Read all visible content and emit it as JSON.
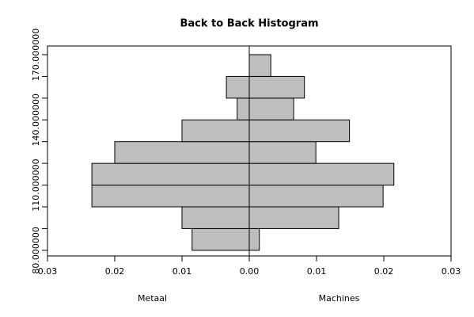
{
  "chart_data": {
    "type": "histogram",
    "title": "Back to Back Histogram",
    "bins": [
      80,
      90,
      100,
      110,
      120,
      130,
      140,
      150,
      160,
      170
    ],
    "series": [
      {
        "name": "Metaal",
        "color": "#bebebe",
        "values": [
          0.0085,
          0.01,
          0.0234,
          0.0234,
          0.02,
          0.01,
          0.0018,
          0.0034,
          0
        ]
      },
      {
        "name": "Machines",
        "color": "#bebebe",
        "values": [
          0.0015,
          0.0133,
          0.0199,
          0.0215,
          0.0099,
          0.0149,
          0.0066,
          0.0082,
          0.0032
        ]
      }
    ],
    "xlim": [
      -0.03,
      0.03
    ],
    "xticks": [
      {
        "value": -0.03,
        "label": "0.03"
      },
      {
        "value": -0.02,
        "label": "0.02"
      },
      {
        "value": -0.01,
        "label": "0.01"
      },
      {
        "value": 0,
        "label": "0.00"
      },
      {
        "value": 0.01,
        "label": "0.01"
      },
      {
        "value": 0.02,
        "label": "0.02"
      },
      {
        "value": 0.03,
        "label": "0.03"
      }
    ],
    "ylim": [
      77.4,
      174
    ],
    "yticks": [
      {
        "value": 80,
        "label": "80.000000"
      },
      {
        "value": 90,
        "label": null
      },
      {
        "value": 100,
        "label": null
      },
      {
        "value": 110,
        "label": "110.000000"
      },
      {
        "value": 120,
        "label": null
      },
      {
        "value": 130,
        "label": null
      },
      {
        "value": 140,
        "label": "140.000000"
      },
      {
        "value": 150,
        "label": null
      },
      {
        "value": 160,
        "label": null
      },
      {
        "value": 170,
        "label": "170.000000"
      }
    ]
  }
}
